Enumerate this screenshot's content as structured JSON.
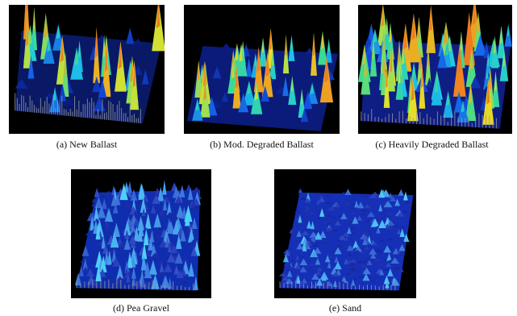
{
  "figure": {
    "panels": [
      {
        "id": "a",
        "caption": "(a) New Ballast",
        "palette": "jet",
        "texture": "coarse-sparse"
      },
      {
        "id": "b",
        "caption": "(b) Mod. Degraded Ballast",
        "palette": "jet",
        "texture": "coarse-medium"
      },
      {
        "id": "c",
        "caption": "(c) Heavily Degraded Ballast",
        "palette": "jet",
        "texture": "coarse-dense"
      },
      {
        "id": "d",
        "caption": "(d) Pea Gravel",
        "palette": "blue",
        "texture": "fine"
      },
      {
        "id": "e",
        "caption": "(e) Sand",
        "palette": "blue",
        "texture": "very-fine"
      }
    ],
    "colors": {
      "panel_background": "#000000",
      "peak_high": "#e8e020",
      "peak_mid": "#20d0e0",
      "peak_low": "#1030c0",
      "base_gray": "#9a9a9a"
    }
  }
}
